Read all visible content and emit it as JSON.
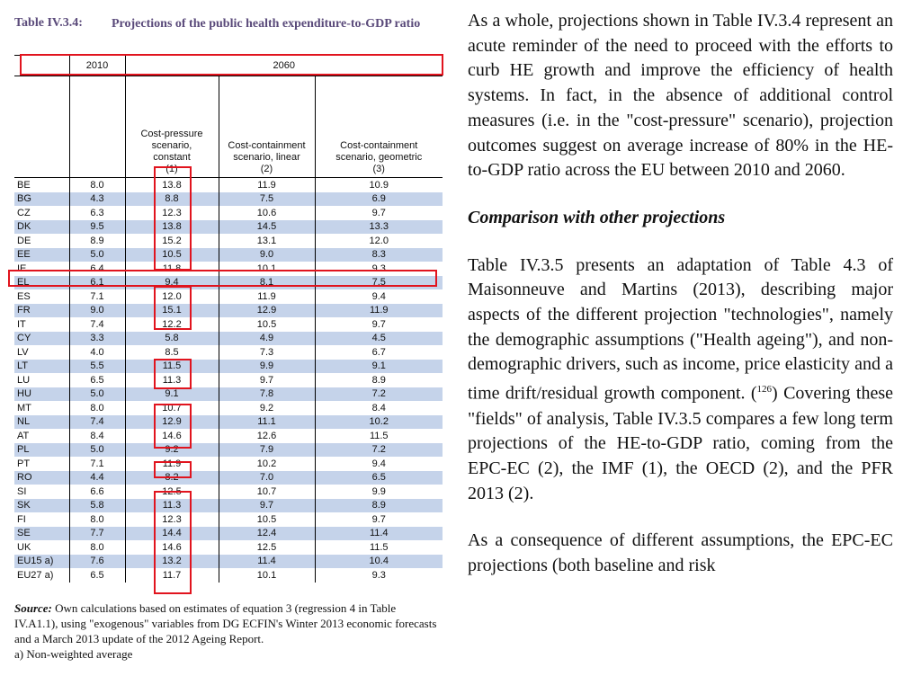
{
  "table": {
    "label": "Table IV.3.4:",
    "title": "Projections of the public health expenditure-to-GDP ratio",
    "year_2010": "2010",
    "year_2060": "2060",
    "col1": [
      "Cost-pressure",
      "scenario,",
      "constant",
      "(1)"
    ],
    "col2": [
      "Cost-containment",
      "scenario, linear",
      "(2)"
    ],
    "col3": [
      "Cost-containment",
      "scenario, geometric",
      "(3)"
    ],
    "rows": [
      [
        "BE",
        "8.0",
        "13.8",
        "11.9",
        "10.9"
      ],
      [
        "BG",
        "4.3",
        "8.8",
        "7.5",
        "6.9"
      ],
      [
        "CZ",
        "6.3",
        "12.3",
        "10.6",
        "9.7"
      ],
      [
        "DK",
        "9.5",
        "13.8",
        "14.5",
        "13.3"
      ],
      [
        "DE",
        "8.9",
        "15.2",
        "13.1",
        "12.0"
      ],
      [
        "EE",
        "5.0",
        "10.5",
        "9.0",
        "8.3"
      ],
      [
        "IE",
        "6.4",
        "11.8",
        "10.1",
        "9.3"
      ],
      [
        "EL",
        "6.1",
        "9.4",
        "8.1",
        "7.5"
      ],
      [
        "ES",
        "7.1",
        "12.0",
        "11.9",
        "9.4"
      ],
      [
        "FR",
        "9.0",
        "15.1",
        "12.9",
        "11.9"
      ],
      [
        "IT",
        "7.4",
        "12.2",
        "10.5",
        "9.7"
      ],
      [
        "CY",
        "3.3",
        "5.8",
        "4.9",
        "4.5"
      ],
      [
        "LV",
        "4.0",
        "8.5",
        "7.3",
        "6.7"
      ],
      [
        "LT",
        "5.5",
        "11.5",
        "9.9",
        "9.1"
      ],
      [
        "LU",
        "6.5",
        "11.3",
        "9.7",
        "8.9"
      ],
      [
        "HU",
        "5.0",
        "9.1",
        "7.8",
        "7.2"
      ],
      [
        "MT",
        "8.0",
        "10.7",
        "9.2",
        "8.4"
      ],
      [
        "NL",
        "7.4",
        "12.9",
        "11.1",
        "10.2"
      ],
      [
        "AT",
        "8.4",
        "14.6",
        "12.6",
        "11.5"
      ],
      [
        "PL",
        "5.0",
        "9.2",
        "7.9",
        "7.2"
      ],
      [
        "PT",
        "7.1",
        "11.9",
        "10.2",
        "9.4"
      ],
      [
        "RO",
        "4.4",
        "8.2",
        "7.0",
        "6.5"
      ],
      [
        "SI",
        "6.6",
        "12.5",
        "10.7",
        "9.9"
      ],
      [
        "SK",
        "5.8",
        "11.3",
        "9.7",
        "8.9"
      ],
      [
        "FI",
        "8.0",
        "12.3",
        "10.5",
        "9.7"
      ],
      [
        "SE",
        "7.7",
        "14.4",
        "12.4",
        "11.4"
      ],
      [
        "UK",
        "8.0",
        "14.6",
        "12.5",
        "11.5"
      ],
      [
        "EU15 a)",
        "7.6",
        "13.2",
        "11.4",
        "10.4"
      ],
      [
        "EU27 a)",
        "6.5",
        "11.7",
        "10.1",
        "9.3"
      ]
    ],
    "source_label": "Source:",
    "source_text": "Own calculations based on estimates of equation 3 (regression 4 in Table IV.A1.1), using \"exogenous\" variables from DG ECFIN's Winter 2013 economic forecasts and a March 2013 update of the 2012 Ageing Report.",
    "note": "a) Non-weighted average",
    "colors": {
      "band": "#c5d3ea",
      "highlight": "#e1141e",
      "caption": "#5a4a7a"
    }
  },
  "body": {
    "p1": "As a whole, projections shown in Table IV.3.4 represent an acute reminder of the need to proceed with the efforts to curb HE growth and improve the efficiency of health systems. In fact, in the absence of additional control measures (i.e. in the \"cost-pressure\" scenario), projection outcomes suggest on average increase of 80% in the HE-to-GDP ratio across the EU between 2010 and 2060.",
    "heading": "Comparison with other projections",
    "p2a": "Table IV.3.5 presents an adaptation of Table 4.3 of Maisonneuve and Martins (2013), describing major aspects of the different projection \"technologies\", namely the demographic assumptions (\"Health ageing\"), and non-demographic drivers, such as income, price elasticity and a time drift/residual growth component. (",
    "p2sup": "126",
    "p2b": ") Covering these \"fields\" of analysis, Table IV.3.5 compares a few long term projections of the HE-to-GDP ratio, coming from the EPC-EC (2), the IMF (1), the OECD (2), and the PFR 2013 (2).",
    "p3": "As a consequence of different assumptions, the EPC-EC projections (both baseline and risk"
  }
}
